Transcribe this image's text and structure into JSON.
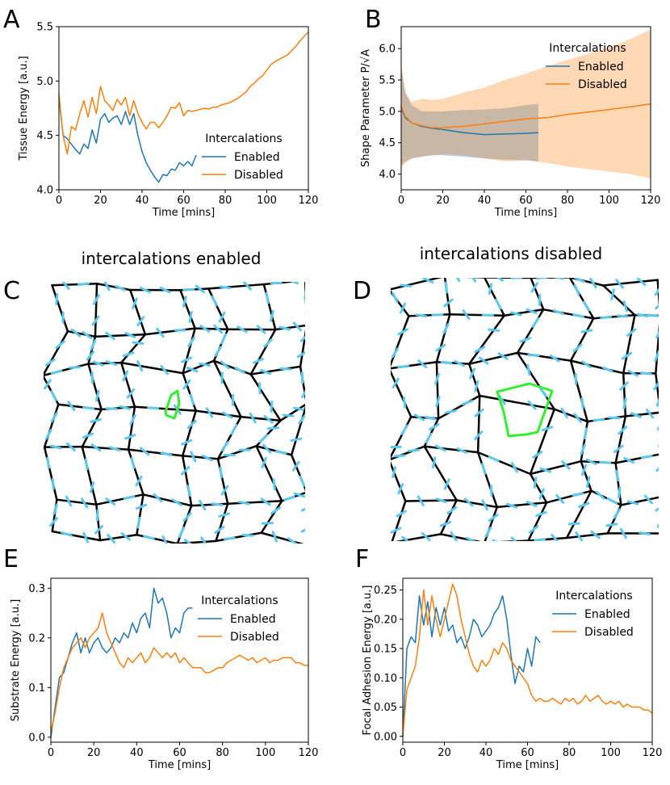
{
  "colors": {
    "enabled": "#1f77b4",
    "disabled": "#ff7f0e",
    "mesh": "#000000",
    "arrows": "#5bc8f0",
    "highlight": "#33ee33"
  },
  "panel_letters": [
    "A",
    "B",
    "C",
    "D",
    "E",
    "F"
  ],
  "mesh_titles": {
    "C": "intercalations enabled",
    "D": "intercalations disabled"
  },
  "chart_data": [
    {
      "id": "A",
      "type": "line",
      "title": "",
      "xlabel": "Time [mins]",
      "ylabel": "Tissue Energy [a.u.]",
      "xlim": [
        0,
        120
      ],
      "ylim": [
        4.0,
        5.5
      ],
      "xticks": [
        "0",
        "20",
        "40",
        "60",
        "80",
        "100",
        "120"
      ],
      "yticks": [
        "4.0",
        "4.5",
        "5.0",
        "5.5"
      ],
      "legend": {
        "title": "Intercalations",
        "entries": [
          "Enabled",
          "Disabled"
        ],
        "position": "center-right"
      },
      "series": [
        {
          "name": "Enabled",
          "x": [
            0,
            2,
            4,
            6,
            8,
            10,
            12,
            14,
            16,
            18,
            20,
            22,
            24,
            26,
            28,
            30,
            32,
            34,
            36,
            38,
            40,
            42,
            44,
            46,
            48,
            50,
            52,
            54,
            56,
            58,
            60,
            62,
            64,
            66
          ],
          "y": [
            4.85,
            4.5,
            4.47,
            4.42,
            4.37,
            4.33,
            4.42,
            4.38,
            4.55,
            4.43,
            4.65,
            4.7,
            4.62,
            4.66,
            4.68,
            4.6,
            4.72,
            4.6,
            4.7,
            4.5,
            4.35,
            4.25,
            4.18,
            4.12,
            4.07,
            4.14,
            4.13,
            4.19,
            4.18,
            4.25,
            4.22,
            4.26,
            4.22,
            4.32
          ]
        },
        {
          "name": "Disabled",
          "x": [
            0,
            2,
            4,
            6,
            8,
            10,
            12,
            14,
            16,
            18,
            20,
            22,
            24,
            26,
            28,
            30,
            32,
            34,
            36,
            38,
            40,
            42,
            44,
            46,
            48,
            50,
            52,
            54,
            56,
            58,
            60,
            62,
            64,
            66,
            68,
            70,
            72,
            74,
            76,
            78,
            80,
            82,
            84,
            86,
            88,
            90,
            92,
            94,
            96,
            98,
            100,
            102,
            104,
            106,
            108,
            110,
            112,
            114,
            116,
            118,
            120
          ],
          "y": [
            4.88,
            4.5,
            4.33,
            4.58,
            4.55,
            4.7,
            4.82,
            4.67,
            4.85,
            4.7,
            4.95,
            4.82,
            4.78,
            4.73,
            4.83,
            4.78,
            4.85,
            4.68,
            4.82,
            4.7,
            4.62,
            4.56,
            4.62,
            4.62,
            4.57,
            4.62,
            4.68,
            4.76,
            4.75,
            4.8,
            4.68,
            4.73,
            4.72,
            4.73,
            4.74,
            4.75,
            4.74,
            4.76,
            4.76,
            4.78,
            4.79,
            4.8,
            4.82,
            4.84,
            4.87,
            4.9,
            4.95,
            4.98,
            5.02,
            5.05,
            5.1,
            5.15,
            5.18,
            5.2,
            5.22,
            5.24,
            5.28,
            5.32,
            5.37,
            5.41,
            5.45
          ]
        }
      ]
    },
    {
      "id": "B",
      "type": "line",
      "title": "",
      "xlabel": "Time [mins]",
      "ylabel": "Shape Parameter P/√A",
      "xlim": [
        0,
        120
      ],
      "ylim": [
        3.75,
        6.35
      ],
      "xticks": [
        "0",
        "20",
        "40",
        "60",
        "80",
        "100",
        "120"
      ],
      "yticks": [
        "4.0",
        "4.5",
        "5.0",
        "5.5",
        "6.0"
      ],
      "legend": {
        "title": "Intercalations",
        "entries": [
          "Enabled",
          "Disabled"
        ],
        "position": "top-right"
      },
      "series": [
        {
          "name": "Enabled",
          "x": [
            0,
            2,
            5,
            10,
            15,
            20,
            30,
            40,
            50,
            60,
            66
          ],
          "y": [
            5.05,
            4.9,
            4.82,
            4.76,
            4.73,
            4.71,
            4.66,
            4.63,
            4.64,
            4.65,
            4.66
          ],
          "lower": [
            4.15,
            4.2,
            4.25,
            4.28,
            4.3,
            4.3,
            4.28,
            4.25,
            4.23,
            4.22,
            4.2
          ],
          "upper": [
            5.7,
            5.3,
            5.1,
            5.0,
            5.0,
            5.0,
            5.02,
            5.03,
            5.05,
            5.1,
            5.12
          ]
        },
        {
          "name": "Disabled",
          "x": [
            0,
            2,
            5,
            10,
            15,
            20,
            30,
            40,
            50,
            60,
            70,
            80,
            90,
            100,
            110,
            120
          ],
          "y": [
            5.08,
            4.92,
            4.82,
            4.77,
            4.74,
            4.74,
            4.76,
            4.8,
            4.84,
            4.88,
            4.9,
            4.95,
            4.99,
            5.03,
            5.07,
            5.12
          ],
          "lower": [
            4.1,
            4.18,
            4.25,
            4.28,
            4.3,
            4.32,
            4.3,
            4.25,
            4.2,
            4.22,
            4.18,
            4.12,
            4.08,
            4.04,
            4.0,
            3.93
          ],
          "upper": [
            5.75,
            5.3,
            5.15,
            5.2,
            5.18,
            5.2,
            5.3,
            5.38,
            5.5,
            5.6,
            5.72,
            5.82,
            5.92,
            6.02,
            6.15,
            6.3
          ]
        }
      ]
    },
    {
      "id": "E",
      "type": "line",
      "title": "",
      "xlabel": "Time [mins]",
      "ylabel": "Substrate Energy [a.u.]",
      "xlim": [
        0,
        120
      ],
      "ylim": [
        -0.01,
        0.32
      ],
      "xticks": [
        "0",
        "20",
        "40",
        "60",
        "80",
        "100",
        "120"
      ],
      "yticks": [
        "0.0",
        "0.1",
        "0.2",
        "0.3"
      ],
      "legend": {
        "title": "Intercalations",
        "entries": [
          "Enabled",
          "Disabled"
        ],
        "position": "top-right"
      },
      "series": [
        {
          "name": "Enabled",
          "x": [
            0,
            2,
            4,
            6,
            8,
            10,
            12,
            14,
            16,
            18,
            20,
            22,
            24,
            26,
            28,
            30,
            32,
            34,
            36,
            38,
            40,
            42,
            44,
            46,
            48,
            50,
            52,
            54,
            56,
            58,
            60,
            62,
            64,
            66
          ],
          "y": [
            0.0,
            0.06,
            0.12,
            0.13,
            0.16,
            0.19,
            0.21,
            0.17,
            0.2,
            0.17,
            0.19,
            0.2,
            0.18,
            0.17,
            0.18,
            0.2,
            0.19,
            0.21,
            0.2,
            0.23,
            0.21,
            0.24,
            0.25,
            0.22,
            0.3,
            0.27,
            0.28,
            0.25,
            0.2,
            0.22,
            0.21,
            0.25,
            0.26,
            0.26
          ]
        },
        {
          "name": "Disabled",
          "x": [
            0,
            2,
            4,
            6,
            8,
            10,
            12,
            14,
            16,
            18,
            20,
            22,
            24,
            26,
            28,
            30,
            32,
            34,
            36,
            38,
            40,
            42,
            44,
            46,
            48,
            50,
            52,
            54,
            56,
            58,
            60,
            62,
            64,
            66,
            68,
            70,
            72,
            74,
            76,
            78,
            80,
            82,
            84,
            86,
            88,
            90,
            92,
            94,
            96,
            98,
            100,
            102,
            104,
            106,
            108,
            110,
            112,
            114,
            116,
            118,
            120
          ],
          "y": [
            0.01,
            0.05,
            0.1,
            0.14,
            0.16,
            0.18,
            0.19,
            0.2,
            0.18,
            0.2,
            0.21,
            0.22,
            0.25,
            0.21,
            0.19,
            0.17,
            0.15,
            0.14,
            0.16,
            0.15,
            0.16,
            0.17,
            0.15,
            0.16,
            0.18,
            0.17,
            0.16,
            0.17,
            0.16,
            0.17,
            0.15,
            0.16,
            0.15,
            0.14,
            0.14,
            0.14,
            0.13,
            0.13,
            0.135,
            0.14,
            0.14,
            0.15,
            0.155,
            0.16,
            0.165,
            0.16,
            0.155,
            0.16,
            0.15,
            0.155,
            0.16,
            0.15,
            0.155,
            0.155,
            0.16,
            0.16,
            0.16,
            0.15,
            0.15,
            0.145,
            0.145
          ]
        }
      ]
    },
    {
      "id": "F",
      "type": "line",
      "title": "",
      "xlabel": "Time [mins]",
      "ylabel": "Focal Adhesion Energy [a.u.]",
      "xlim": [
        0,
        120
      ],
      "ylim": [
        -0.01,
        0.27
      ],
      "xticks": [
        "0",
        "20",
        "40",
        "60",
        "80",
        "100",
        "120"
      ],
      "yticks": [
        "0.00",
        "0.05",
        "0.10",
        "0.15",
        "0.20",
        "0.25"
      ],
      "legend": {
        "title": "Intercalations",
        "entries": [
          "Enabled",
          "Disabled"
        ],
        "position": "top-right"
      },
      "series": [
        {
          "name": "Enabled",
          "x": [
            0,
            2,
            4,
            6,
            8,
            10,
            12,
            14,
            16,
            18,
            20,
            22,
            24,
            26,
            28,
            30,
            32,
            34,
            36,
            38,
            40,
            42,
            44,
            46,
            48,
            50,
            52,
            54,
            56,
            58,
            60,
            62,
            64,
            66
          ],
          "y": [
            0.0,
            0.15,
            0.17,
            0.16,
            0.24,
            0.19,
            0.23,
            0.17,
            0.22,
            0.19,
            0.22,
            0.18,
            0.19,
            0.16,
            0.17,
            0.15,
            0.17,
            0.2,
            0.19,
            0.17,
            0.18,
            0.19,
            0.21,
            0.22,
            0.24,
            0.2,
            0.14,
            0.09,
            0.12,
            0.11,
            0.15,
            0.12,
            0.17,
            0.16
          ]
        },
        {
          "name": "Disabled",
          "x": [
            0,
            2,
            4,
            6,
            8,
            10,
            12,
            14,
            16,
            18,
            20,
            22,
            24,
            26,
            28,
            30,
            32,
            34,
            36,
            38,
            40,
            42,
            44,
            46,
            48,
            50,
            52,
            54,
            56,
            58,
            60,
            62,
            64,
            66,
            68,
            70,
            72,
            74,
            76,
            78,
            80,
            82,
            84,
            86,
            88,
            90,
            92,
            94,
            96,
            98,
            100,
            102,
            104,
            106,
            108,
            110,
            112,
            114,
            116,
            118,
            120
          ],
          "y": [
            0.0,
            0.08,
            0.1,
            0.12,
            0.17,
            0.25,
            0.19,
            0.24,
            0.2,
            0.17,
            0.2,
            0.23,
            0.26,
            0.24,
            0.2,
            0.17,
            0.14,
            0.12,
            0.11,
            0.13,
            0.12,
            0.13,
            0.15,
            0.14,
            0.16,
            0.15,
            0.13,
            0.12,
            0.11,
            0.1,
            0.09,
            0.07,
            0.06,
            0.065,
            0.06,
            0.06,
            0.065,
            0.06,
            0.055,
            0.065,
            0.06,
            0.065,
            0.055,
            0.06,
            0.07,
            0.06,
            0.065,
            0.07,
            0.06,
            0.055,
            0.06,
            0.055,
            0.06,
            0.05,
            0.055,
            0.05,
            0.05,
            0.05,
            0.045,
            0.045,
            0.04
          ]
        }
      ]
    }
  ]
}
